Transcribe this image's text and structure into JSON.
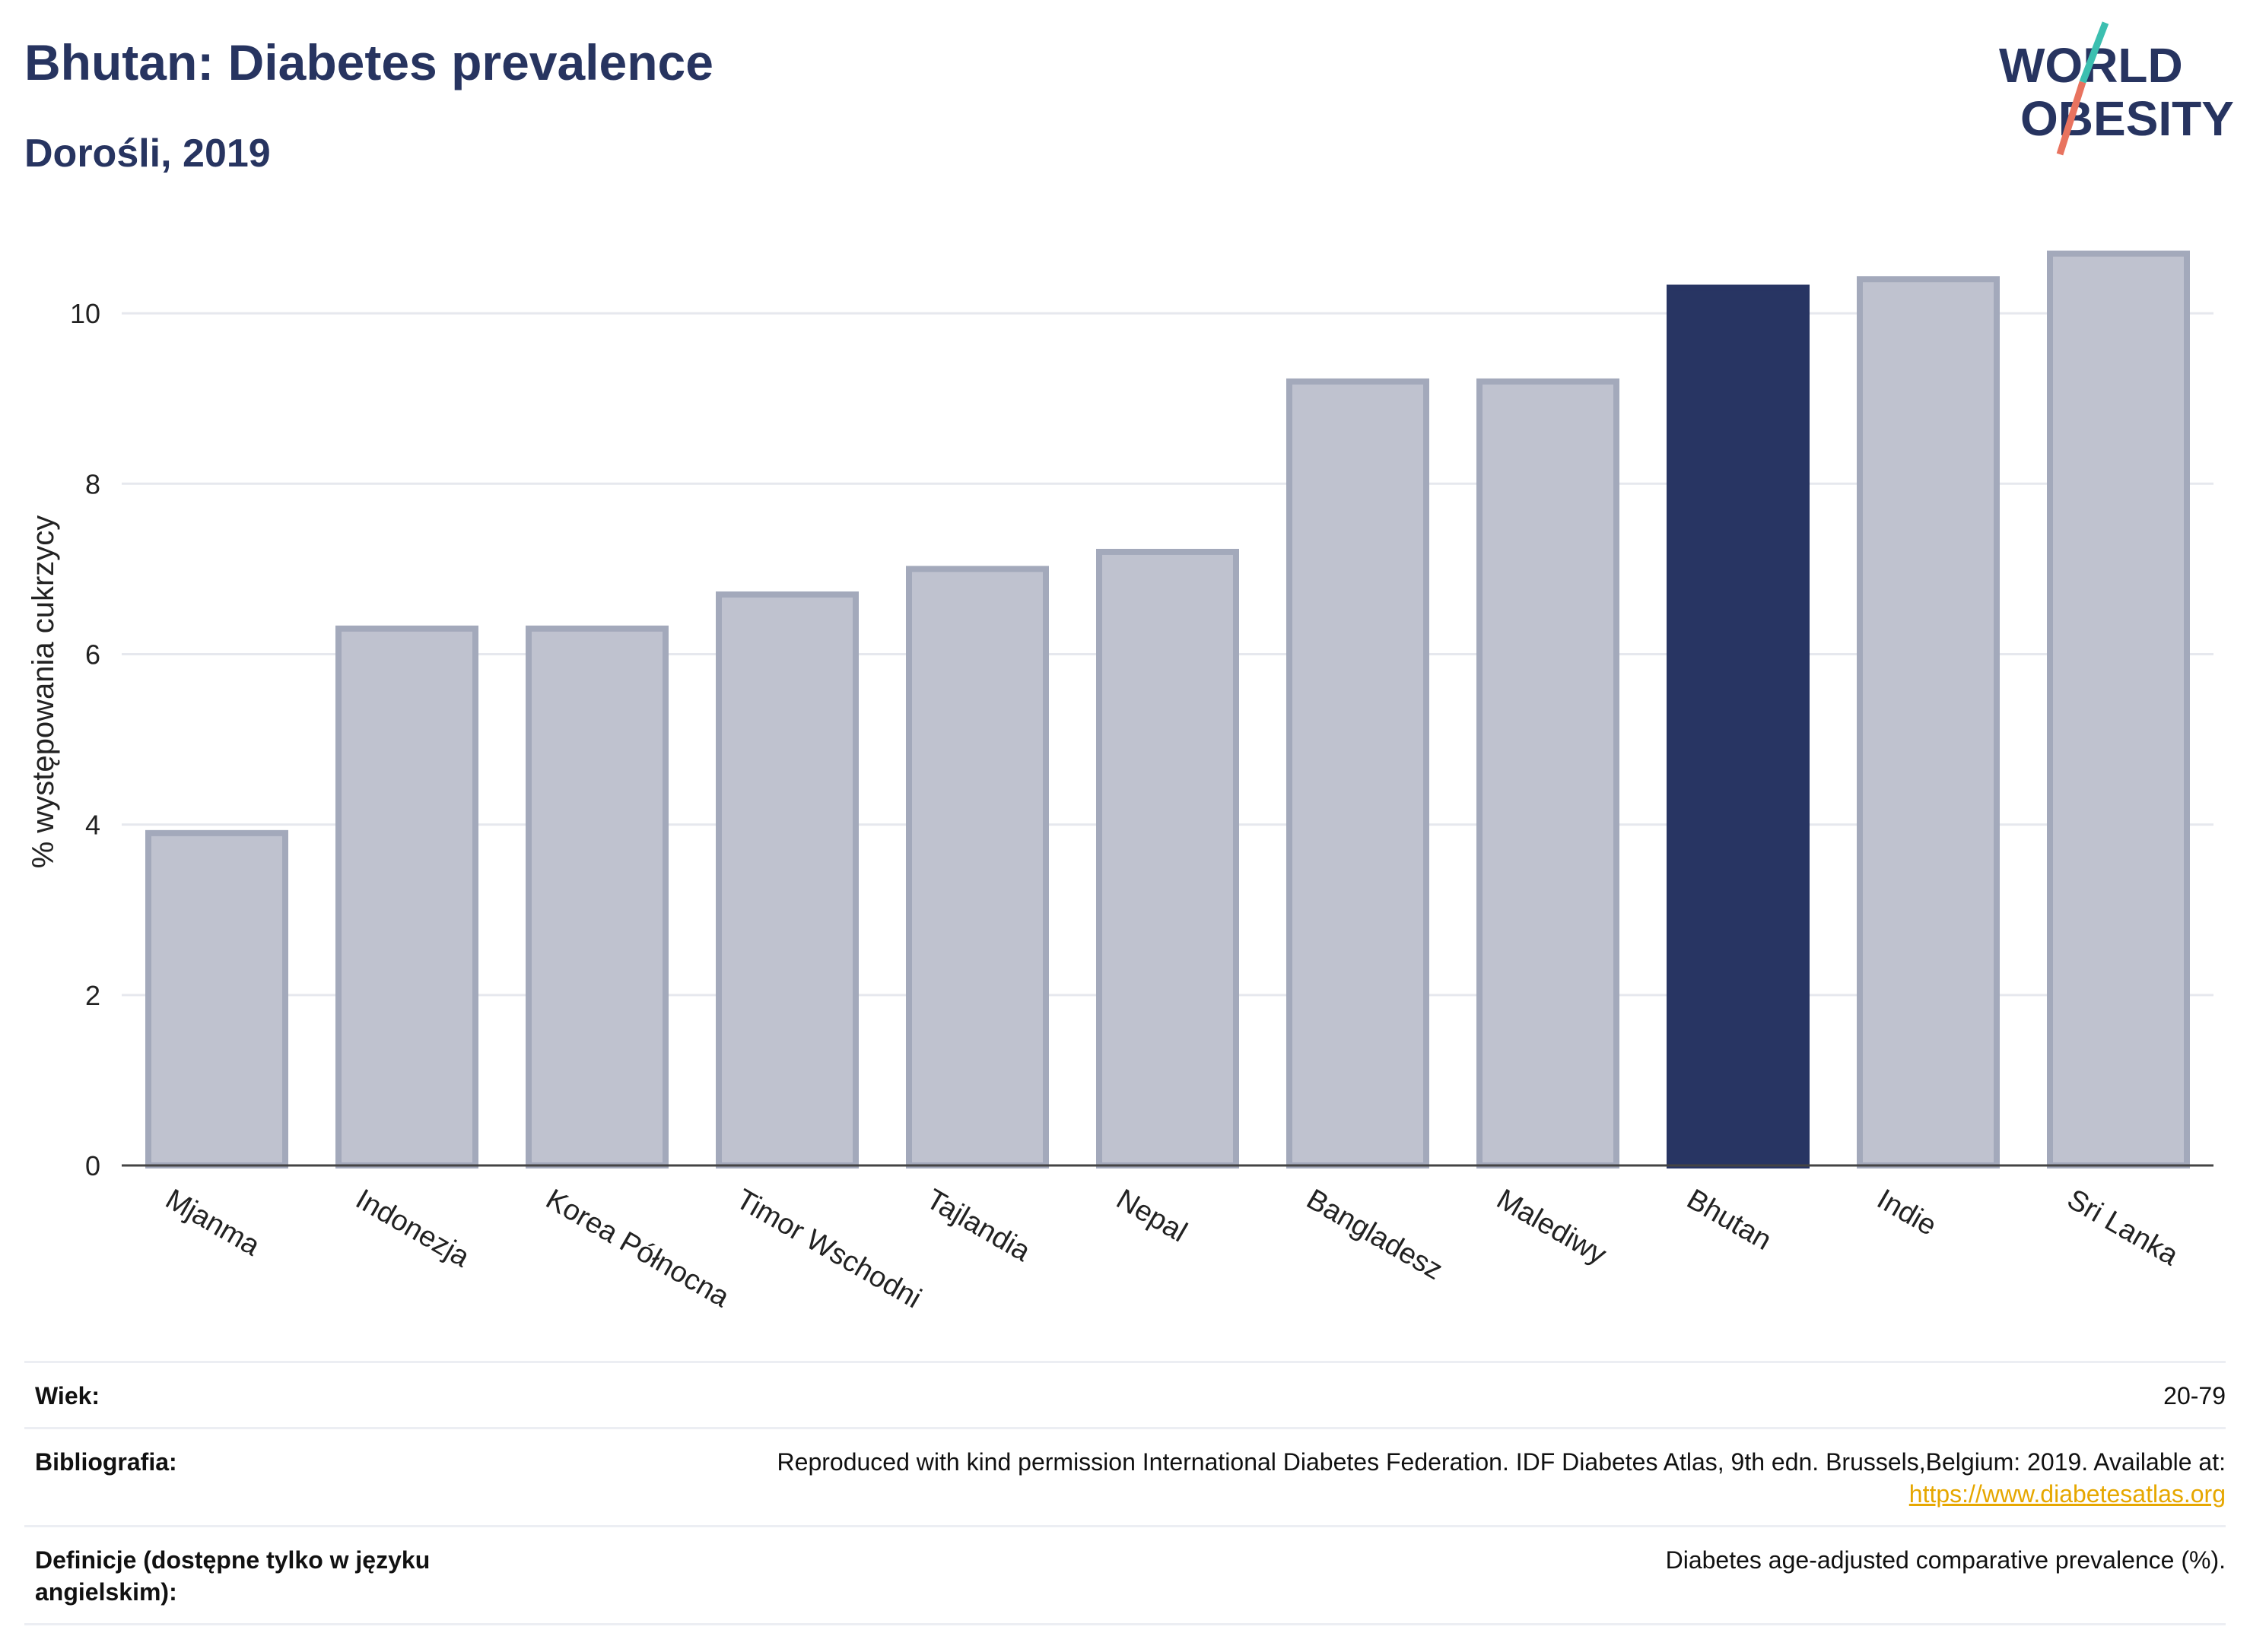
{
  "header": {
    "title": "Bhutan: Diabetes prevalence",
    "subtitle": "Dorośli, 2019"
  },
  "logo": {
    "line1": "WORLD",
    "line2": "OBESITY",
    "slash_colors": [
      "#3cbfb0",
      "#e8735f"
    ]
  },
  "chart_data": {
    "type": "bar",
    "categories": [
      "Mjanma",
      "Indonezja",
      "Korea Północna",
      "Timor Wschodni",
      "Tajlandia",
      "Nepal",
      "Bangladesz",
      "Malediwy",
      "Bhutan",
      "Indie",
      "Sri Lanka"
    ],
    "values": [
      3.9,
      6.3,
      6.3,
      6.7,
      7.0,
      7.2,
      9.2,
      9.2,
      10.3,
      10.4,
      10.7
    ],
    "highlight": "Bhutan",
    "xlabel": "",
    "ylabel": "% występowania cukrzycy",
    "ylim": [
      0,
      11
    ],
    "yticks": [
      0,
      2,
      4,
      6,
      8,
      10
    ],
    "grid": true,
    "colors": {
      "bar": "#bfc2cf",
      "bar_edge": "#a3a9bb",
      "highlight": "#283563",
      "grid": "#e6e8ee",
      "axis": "#444444"
    }
  },
  "meta": {
    "rows": [
      {
        "label": "Wiek:",
        "value": "20-79"
      },
      {
        "label": "Bibliografia:",
        "value": "Reproduced with kind permission International Diabetes Federation. IDF Diabetes Atlas, 9th edn. Brussels,Belgium: 2019. Available at:",
        "link": "https://www.diabetesatlas.org"
      },
      {
        "label": "Definicje (dostępne tylko w języku angielskim):",
        "value": "Diabetes age-adjusted comparative prevalence (%)."
      }
    ]
  }
}
